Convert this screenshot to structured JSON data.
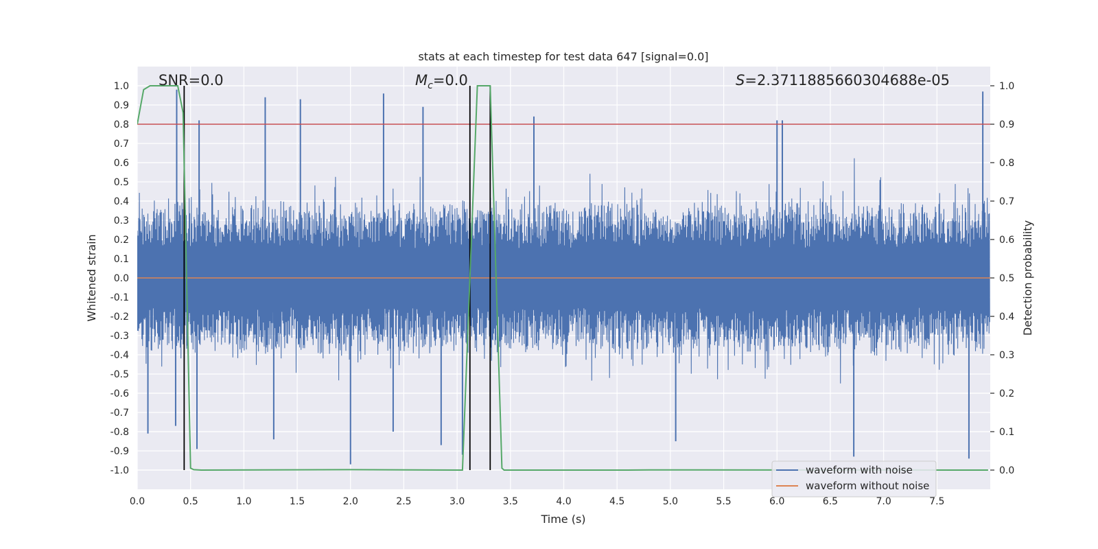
{
  "chart_data": {
    "type": "line",
    "title": "stats at each timestep for test data 647 [signal=0.0]",
    "xlabel": "Time (s)",
    "ylabel": "Whitened strain",
    "y2label": "Detection probability",
    "xlim": [
      0.0,
      8.0
    ],
    "ylim": [
      -1.1,
      1.1
    ],
    "y2lim": [
      -0.05,
      1.05
    ],
    "xticks": [
      "0.0",
      "0.5",
      "1.0",
      "1.5",
      "2.0",
      "2.5",
      "3.0",
      "3.5",
      "4.0",
      "4.5",
      "5.0",
      "5.5",
      "6.0",
      "6.5",
      "7.0",
      "7.5"
    ],
    "yticks": [
      "1.0",
      "0.9",
      "0.8",
      "0.7",
      "0.6",
      "0.5",
      "0.4",
      "0.3",
      "0.2",
      "0.1",
      "0.0",
      "-0.1",
      "-0.2",
      "-0.3",
      "-0.4",
      "-0.5",
      "-0.6",
      "-0.7",
      "-0.8",
      "-0.9",
      "-1.0"
    ],
    "y2ticks": [
      "1.0",
      "0.9",
      "0.8",
      "0.7",
      "0.6",
      "0.5",
      "0.4",
      "0.3",
      "0.2",
      "0.1",
      "0.0"
    ],
    "grid": true,
    "annotations": {
      "snr": "SNR=0.0",
      "mc_symbol": "M",
      "mc_sub": "c",
      "mc_value": "=0.0",
      "s_symbol": "S",
      "s_value": "=2.3711885660304688e-05"
    },
    "threshold": {
      "value": 0.9,
      "axis": "right",
      "color": "#c44e52"
    },
    "vertical_lines": [
      0.44,
      3.12,
      3.31
    ],
    "series": [
      {
        "name": "waveform with noise",
        "axis": "left",
        "color": "#4c72b0",
        "description": "whitened noise strain, typical amplitude ±0.5, peaks to ±0.95",
        "peaks": [
          {
            "x": 0.37,
            "y": 0.98
          },
          {
            "x": 1.2,
            "y": 0.94
          },
          {
            "x": 1.53,
            "y": 0.93
          },
          {
            "x": 2.31,
            "y": 0.96
          },
          {
            "x": 2.68,
            "y": 0.89
          },
          {
            "x": 3.72,
            "y": 0.84
          },
          {
            "x": 7.93,
            "y": 0.97
          },
          {
            "x": 0.58,
            "y": 0.82
          },
          {
            "x": 6.0,
            "y": 0.82
          },
          {
            "x": 6.05,
            "y": 0.82
          }
        ],
        "troughs": [
          {
            "x": 0.1,
            "y": -0.81
          },
          {
            "x": 0.36,
            "y": -0.77
          },
          {
            "x": 0.56,
            "y": -0.89
          },
          {
            "x": 1.28,
            "y": -0.84
          },
          {
            "x": 2.0,
            "y": -0.97
          },
          {
            "x": 2.4,
            "y": -0.8
          },
          {
            "x": 2.85,
            "y": -0.87
          },
          {
            "x": 3.05,
            "y": -0.92
          },
          {
            "x": 5.05,
            "y": -0.85
          },
          {
            "x": 6.72,
            "y": -0.93
          },
          {
            "x": 7.8,
            "y": -0.94
          }
        ]
      },
      {
        "name": "waveform without noise",
        "axis": "left",
        "color": "#dd8452",
        "x": [
          0.0,
          8.0
        ],
        "y": [
          0.0,
          0.0
        ]
      },
      {
        "name": "detection probability",
        "axis": "right",
        "color": "#55a868",
        "x": [
          0.0,
          0.06,
          0.12,
          0.2,
          0.38,
          0.43,
          0.5,
          0.53,
          0.6,
          2.0,
          3.05,
          3.19,
          3.31,
          3.42,
          3.44,
          4.6,
          4.8,
          7.98
        ],
        "y": [
          0.9,
          0.99,
          1.0,
          1.0,
          1.0,
          0.93,
          0.005,
          0.001,
          0.0,
          0.001,
          0.0,
          1.0,
          1.0,
          0.005,
          0.0,
          0.0,
          0.0005,
          0.0
        ]
      }
    ],
    "legend": {
      "position": "lower-right",
      "entries": [
        "waveform with noise",
        "waveform without noise"
      ]
    }
  }
}
